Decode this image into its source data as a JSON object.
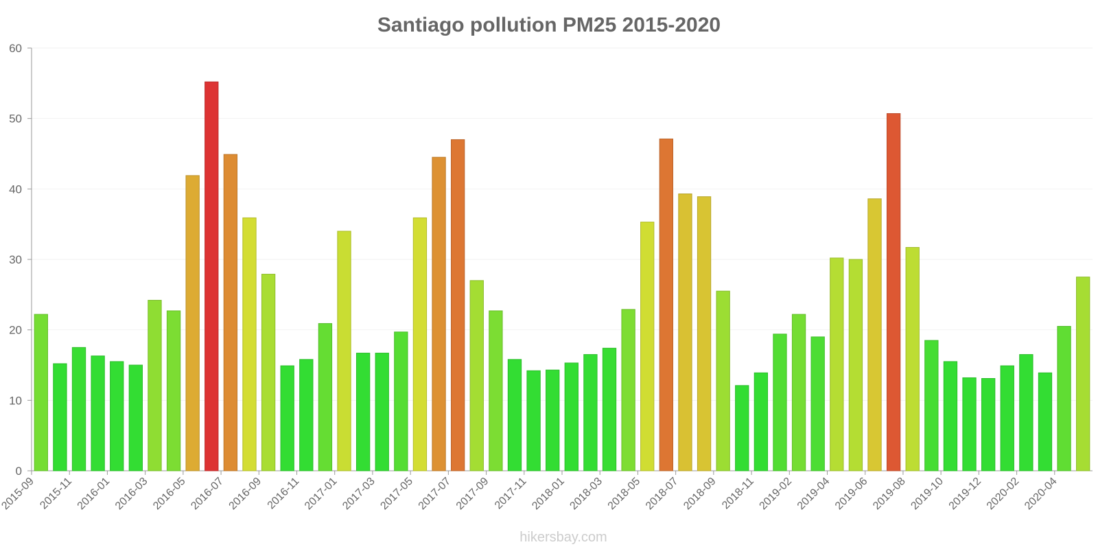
{
  "chart_data": {
    "type": "bar",
    "title": "Santiago pollution PM25 2015-2020",
    "xlabel": "",
    "ylabel": "",
    "ylim": [
      0,
      60
    ],
    "yticks": [
      0,
      10,
      20,
      30,
      40,
      50,
      60
    ],
    "grid": true,
    "categories": [
      "2015-09",
      "2015-10",
      "2015-11",
      "2015-12",
      "2016-01",
      "2016-02",
      "2016-03",
      "2016-04",
      "2016-05",
      "2016-06",
      "2016-07",
      "2016-08",
      "2016-09",
      "2016-10",
      "2016-11",
      "2016-12",
      "2017-01",
      "2017-02",
      "2017-03",
      "2017-04",
      "2017-05",
      "2017-06",
      "2017-07",
      "2017-08",
      "2017-09",
      "2017-10",
      "2017-11",
      "2017-12",
      "2018-01",
      "2018-02",
      "2018-03",
      "2018-04",
      "2018-05",
      "2018-06",
      "2018-07",
      "2018-08",
      "2018-09",
      "2018-10",
      "2018-11",
      "2018-12",
      "2019-02",
      "2019-03",
      "2019-04",
      "2019-05",
      "2019-06",
      "2019-07",
      "2019-08",
      "2019-09",
      "2019-10",
      "2019-11",
      "2019-12",
      "2020-01",
      "2020-02",
      "2020-03",
      "2020-04",
      "2020-05"
    ],
    "visible_tick_labels": [
      "2015-09",
      "2015-11",
      "2016-01",
      "2016-03",
      "2016-05",
      "2016-07",
      "2016-09",
      "2016-11",
      "2017-01",
      "2017-03",
      "2017-05",
      "2017-07",
      "2017-09",
      "2017-11",
      "2018-01",
      "2018-03",
      "2018-05",
      "2018-07",
      "2018-09",
      "2018-11",
      "2019-02",
      "2019-04",
      "2019-06",
      "2019-08",
      "2019-10",
      "2019-12",
      "2020-02",
      "2020-04"
    ],
    "values": [
      22.2,
      15.2,
      17.5,
      16.3,
      15.5,
      15.0,
      24.2,
      22.7,
      41.9,
      55.2,
      44.9,
      35.9,
      27.9,
      14.9,
      15.8,
      20.9,
      34.0,
      16.7,
      16.7,
      19.7,
      35.9,
      44.5,
      47.0,
      27.0,
      22.7,
      15.8,
      14.2,
      14.3,
      15.3,
      16.5,
      17.4,
      22.9,
      35.3,
      47.1,
      39.3,
      38.9,
      25.5,
      12.1,
      13.9,
      19.4,
      22.2,
      19.0,
      30.2,
      30.0,
      38.6,
      50.7,
      31.7,
      18.5,
      15.5,
      13.2,
      13.1,
      14.9,
      16.5,
      13.9,
      20.5,
      27.5
    ],
    "color_scale": {
      "low": "#33dd33",
      "mid_low": "#99dd33",
      "mid": "#d4dd33",
      "mid_high": "#ddaa33",
      "high": "#dd7733",
      "max": "#dd3333"
    },
    "watermark": "hikersbay.com"
  }
}
